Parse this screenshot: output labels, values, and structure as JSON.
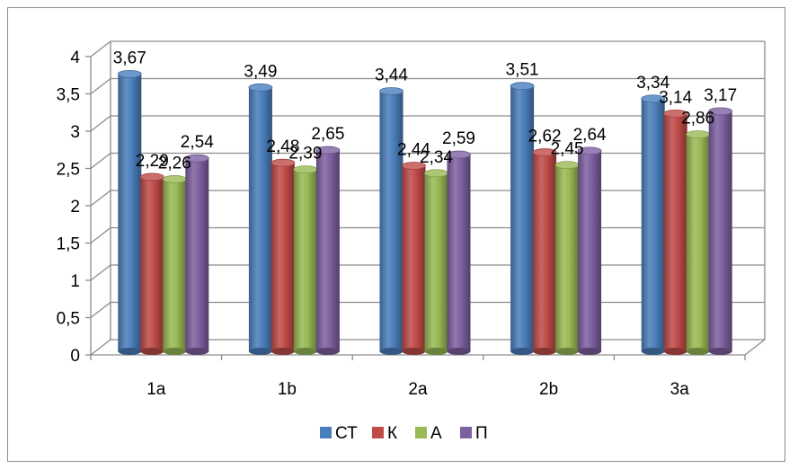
{
  "chart_data": {
    "type": "bar",
    "categories": [
      "1a",
      "1b",
      "2a",
      "2b",
      "3a"
    ],
    "series": [
      {
        "name": "СТ",
        "color": "#4A7EBB",
        "values": [
          3.67,
          3.49,
          3.44,
          3.51,
          3.34
        ],
        "labels": [
          "3,67",
          "3,49",
          "3,44",
          "3,51",
          "3,34"
        ]
      },
      {
        "name": "К",
        "color": "#BE4B48",
        "values": [
          2.29,
          2.48,
          2.44,
          2.62,
          3.14
        ],
        "labels": [
          "2,29",
          "2,48",
          "2,44",
          "2,62",
          "3,14"
        ]
      },
      {
        "name": "А",
        "color": "#98B954",
        "values": [
          2.26,
          2.39,
          2.34,
          2.45,
          2.86
        ],
        "labels": [
          "2,26",
          "2,39",
          "2,34",
          "2,45",
          "2,86"
        ]
      },
      {
        "name": "П",
        "color": "#7D60A0",
        "values": [
          2.54,
          2.65,
          2.59,
          2.64,
          3.17
        ],
        "labels": [
          "2,54",
          "2,65",
          "2,59",
          "2,64",
          "3,17"
        ]
      }
    ],
    "y_ticks": [
      "0",
      "0,5",
      "1",
      "1,5",
      "2",
      "2,5",
      "3",
      "3,5",
      "4"
    ],
    "ylim": [
      0,
      4
    ],
    "grid": true,
    "legend_position": "bottom"
  }
}
